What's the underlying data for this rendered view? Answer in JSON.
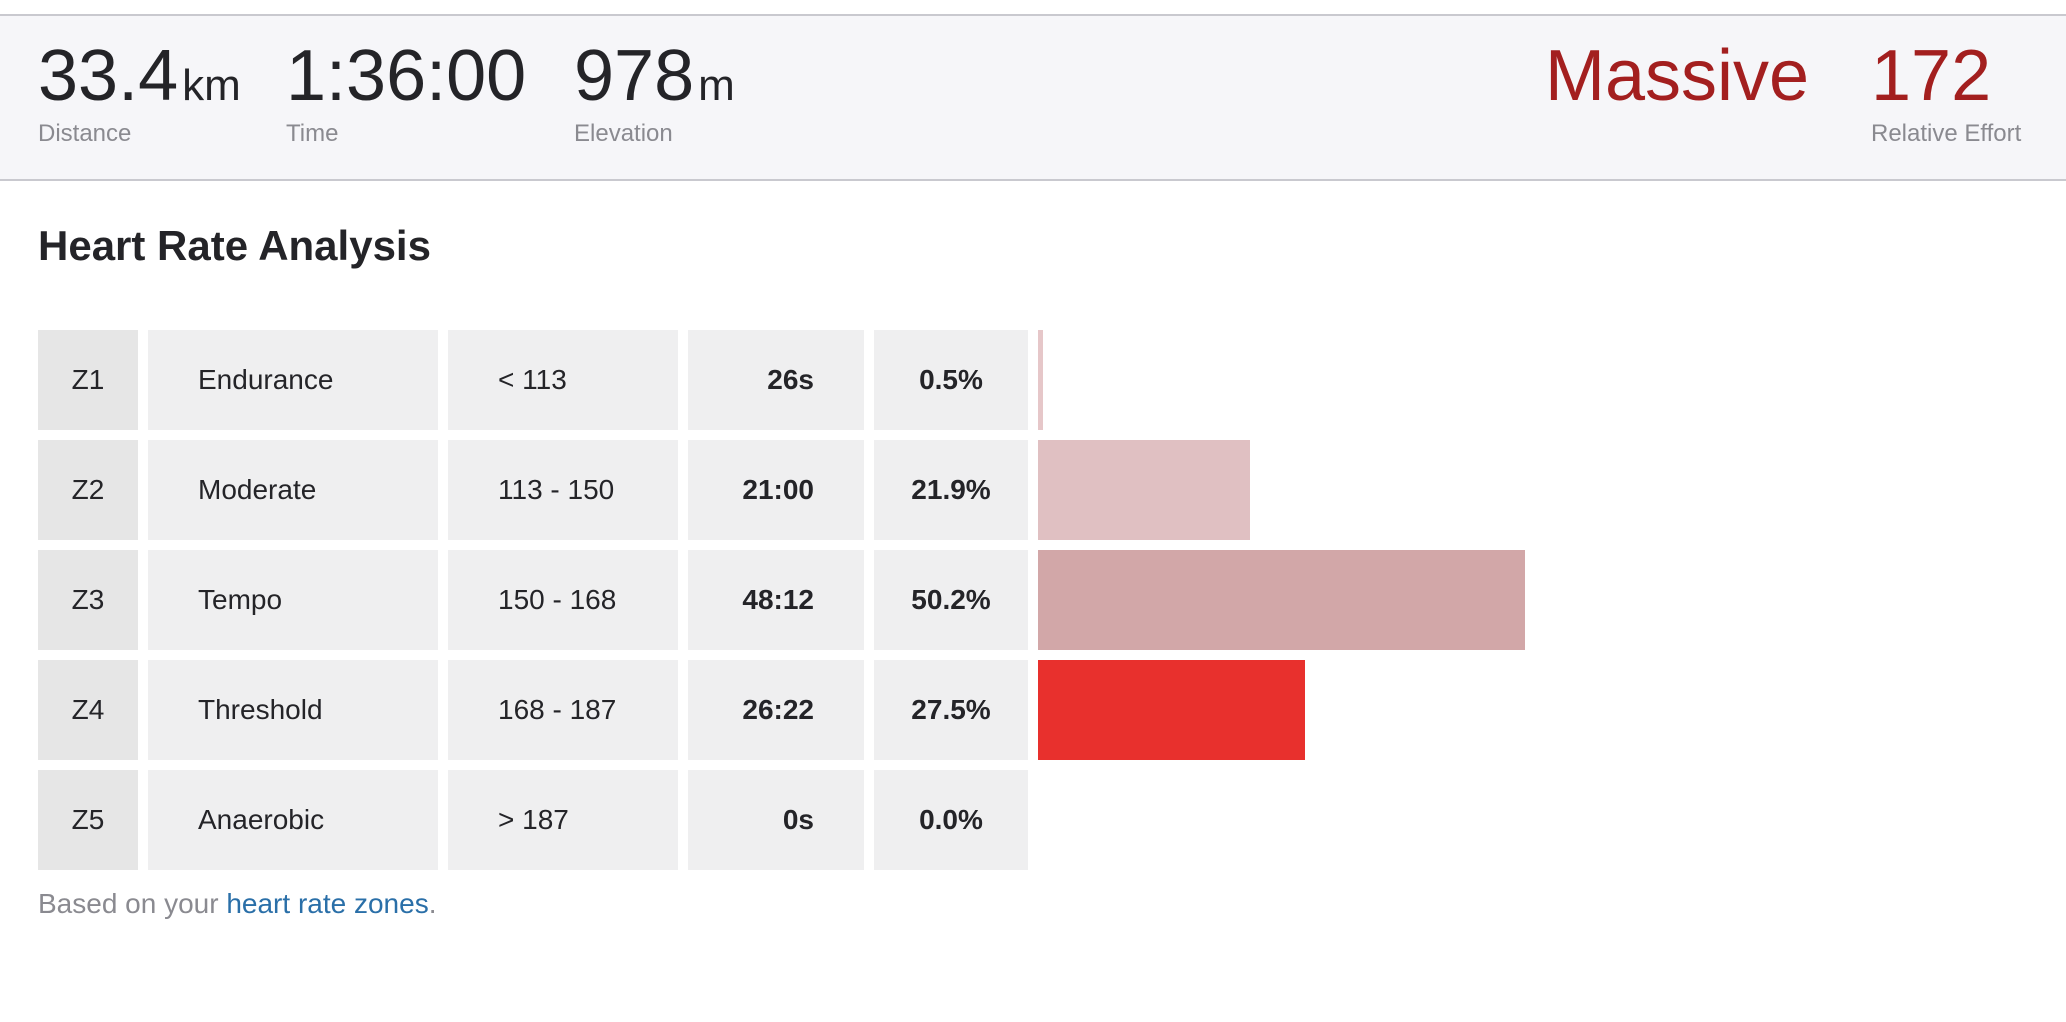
{
  "stats": {
    "distance": {
      "value": "33.4",
      "unit": "km",
      "label": "Distance"
    },
    "time": {
      "value": "1:36:00",
      "label": "Time"
    },
    "elevation": {
      "value": "978",
      "unit": "m",
      "label": "Elevation"
    },
    "intensity": {
      "value": "Massive"
    },
    "relative_effort": {
      "value": "172",
      "label": "Relative Effort"
    }
  },
  "section_title": "Heart Rate Analysis",
  "zones": [
    {
      "zone": "Z1",
      "name": "Endurance",
      "range": "< 113",
      "time": "26s",
      "percent": "0.5%",
      "fraction": 0.005,
      "color": "#e6c7c9"
    },
    {
      "zone": "Z2",
      "name": "Moderate",
      "range": "113 - 150",
      "time": "21:00",
      "percent": "21.9%",
      "fraction": 0.219,
      "color": "#e0c0c2"
    },
    {
      "zone": "Z3",
      "name": "Tempo",
      "range": "150 - 168",
      "time": "48:12",
      "percent": "50.2%",
      "fraction": 0.502,
      "color": "#d2a7a8"
    },
    {
      "zone": "Z4",
      "name": "Threshold",
      "range": "168 - 187",
      "time": "26:22",
      "percent": "27.5%",
      "fraction": 0.275,
      "color": "#e8302d"
    },
    {
      "zone": "Z5",
      "name": "Anaerobic",
      "range": "> 187",
      "time": "0s",
      "percent": "0.0%",
      "fraction": 0.0,
      "color": "#e8302d"
    }
  ],
  "footnote": {
    "prefix": "Based on your ",
    "link_text": "heart rate zones",
    "suffix": "."
  }
}
